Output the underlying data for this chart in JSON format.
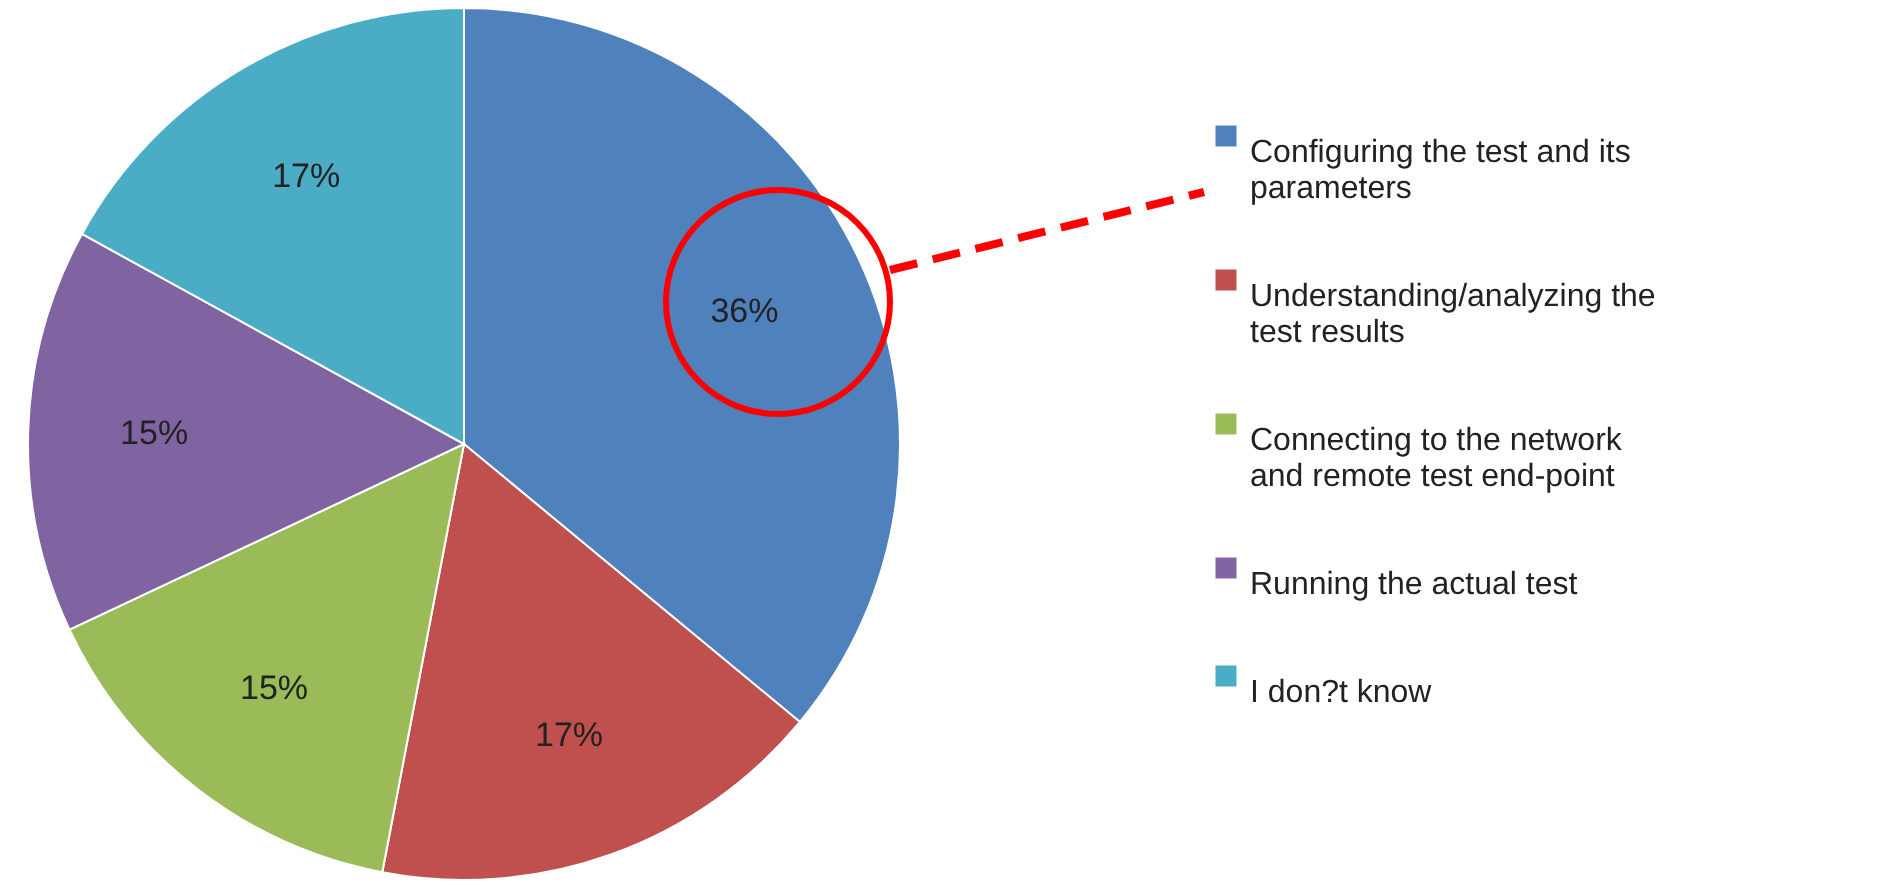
{
  "chart_data": {
    "type": "pie",
    "categories": [
      "Configuring the test and its parameters",
      "Understanding/analyzing the test results",
      "Connecting to the network and remote test end-point",
      "Running the actual test",
      "I don?t know"
    ],
    "values": [
      36,
      17,
      15,
      15,
      17
    ],
    "colors": [
      "#4f81bd",
      "#c0504d",
      "#9bbb59",
      "#8064a2",
      "#4bacc6"
    ],
    "value_labels": [
      "36%",
      "17%",
      "15%",
      "15%",
      "17%"
    ],
    "legend": "right"
  }
}
